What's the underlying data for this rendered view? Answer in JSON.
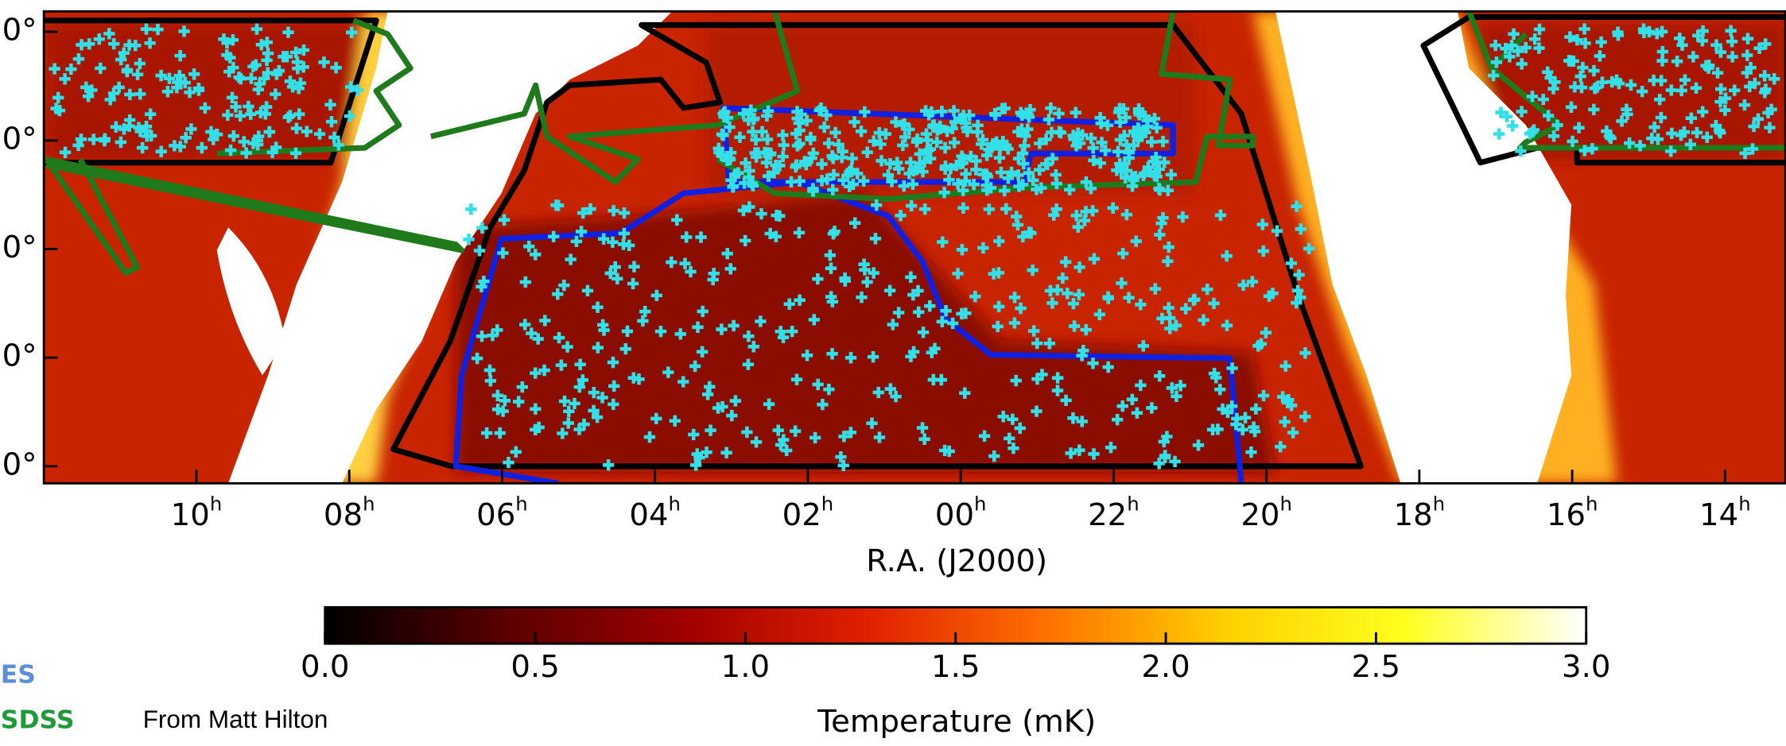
{
  "chart_data": {
    "type": "map",
    "xlabel": "R.A. (J2000)",
    "xticks": [
      "10",
      "08",
      "06",
      "04",
      "02",
      "00",
      "22",
      "20",
      "18",
      "16",
      "14"
    ],
    "xtick_unit": "h",
    "yticks": [
      "0°",
      "0°",
      "0°",
      "0°",
      "0°"
    ],
    "colorbar": {
      "label": "Temperature (mK)",
      "lim": [
        0,
        3
      ],
      "ticks": [
        {
          "value": 0,
          "label": "0.0"
        },
        {
          "value": 0.5,
          "label": "0.5"
        },
        {
          "value": 1,
          "label": "1.0"
        },
        {
          "value": 1.5,
          "label": "1.5"
        },
        {
          "value": 2,
          "label": "2.0"
        },
        {
          "value": 2.5,
          "label": "2.5"
        },
        {
          "value": 3,
          "label": "3.0"
        }
      ],
      "colors": [
        "#000000",
        "#5a0000",
        "#a00000",
        "#e02000",
        "#ff7000",
        "#ffd000",
        "#ffff20",
        "#ffffff"
      ]
    },
    "legend": [
      {
        "name": "ES",
        "color": "#5b8fd6"
      },
      {
        "name": "SDSS",
        "color": "#1e9a3a"
      }
    ],
    "credit": "From Matt Hilton"
  }
}
